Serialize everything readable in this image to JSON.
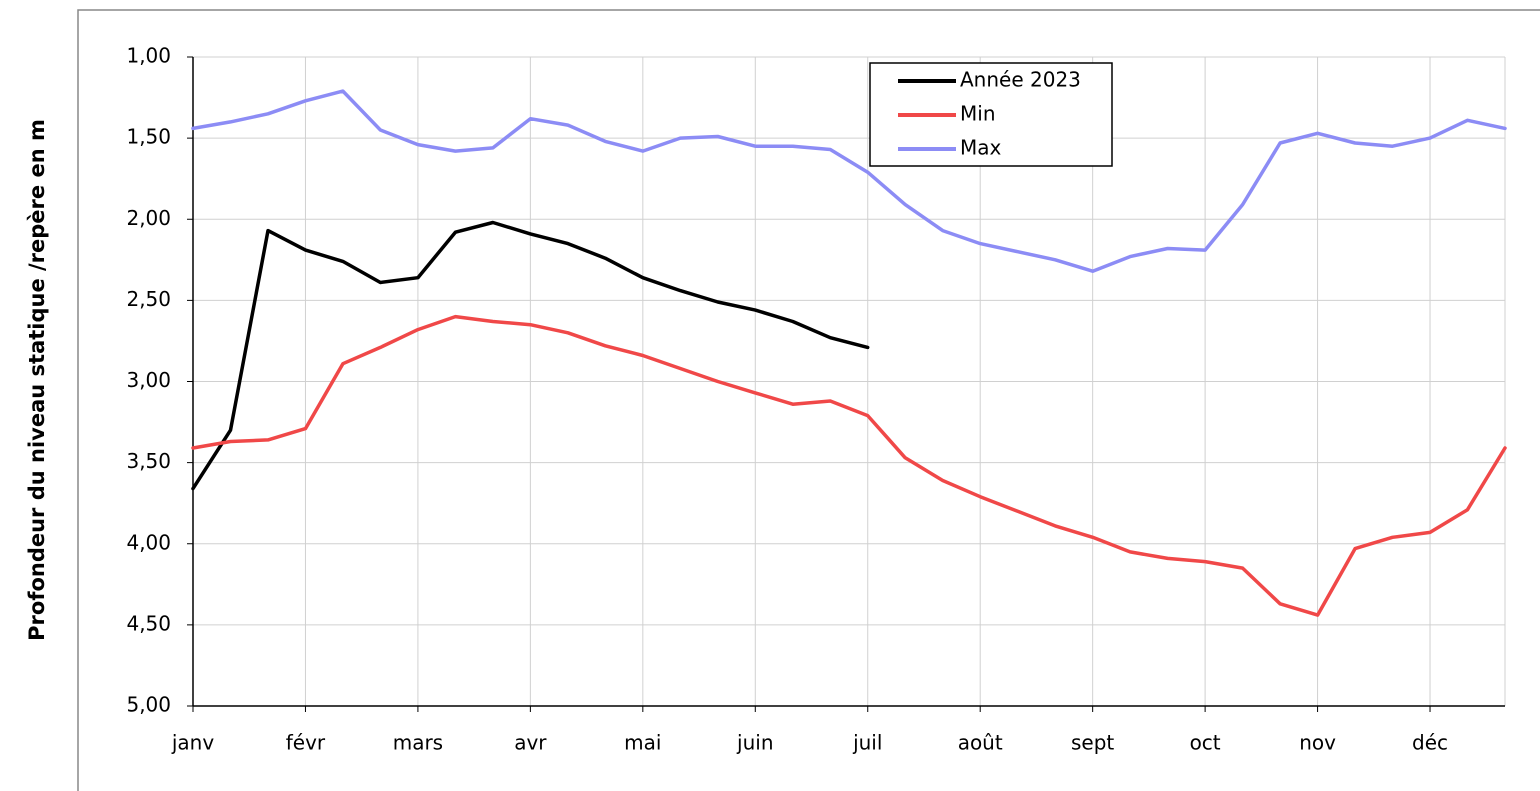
{
  "chart_data": {
    "type": "line",
    "ylabel": "Profondeur du niveau statique /repère en m",
    "categories": [
      "janv",
      null,
      null,
      "févr",
      null,
      null,
      "mars",
      null,
      null,
      "avr",
      null,
      null,
      "mai",
      null,
      null,
      "juin",
      null,
      null,
      "juil",
      null,
      null,
      "août",
      null,
      null,
      "sept",
      null,
      null,
      "oct",
      null,
      null,
      "nov",
      null,
      null,
      "déc",
      null,
      null
    ],
    "series": [
      {
        "name": "Année 2023",
        "color": "#000000",
        "values": [
          3.66,
          3.3,
          2.07,
          2.19,
          2.26,
          2.39,
          2.36,
          2.08,
          2.02,
          2.09,
          2.15,
          2.24,
          2.36,
          2.44,
          2.51,
          2.56,
          2.63,
          2.73,
          2.79,
          null,
          null,
          null,
          null,
          null,
          null,
          null,
          null,
          null,
          null,
          null,
          null,
          null,
          null,
          null,
          null,
          null
        ]
      },
      {
        "name": "Min",
        "color": "#f04848",
        "values": [
          3.41,
          3.37,
          3.36,
          3.29,
          2.89,
          2.79,
          2.68,
          2.6,
          2.63,
          2.65,
          2.7,
          2.78,
          2.84,
          2.92,
          3.0,
          3.07,
          3.14,
          3.12,
          3.21,
          3.47,
          3.61,
          3.71,
          3.8,
          3.89,
          3.96,
          4.05,
          4.09,
          4.11,
          4.15,
          4.37,
          4.44,
          4.03,
          3.96,
          3.93,
          3.79,
          3.41
        ]
      },
      {
        "name": "Max",
        "color": "#8c8cf5",
        "values": [
          1.44,
          1.4,
          1.35,
          1.27,
          1.21,
          1.45,
          1.54,
          1.58,
          1.56,
          1.38,
          1.42,
          1.52,
          1.58,
          1.5,
          1.49,
          1.55,
          1.55,
          1.57,
          1.71,
          1.91,
          2.07,
          2.15,
          2.2,
          2.25,
          2.32,
          2.23,
          2.18,
          2.19,
          1.91,
          1.53,
          1.47,
          1.53,
          1.55,
          1.5,
          1.39,
          1.44
        ]
      }
    ],
    "ylim": [
      1,
      5
    ],
    "invert_y": true,
    "yticks": [
      {
        "value": 1,
        "label": "1,00"
      },
      {
        "value": 1.5,
        "label": "1,50"
      },
      {
        "value": 2,
        "label": "2,00"
      },
      {
        "value": 2.5,
        "label": "2,50"
      },
      {
        "value": 3,
        "label": "3,00"
      },
      {
        "value": 3.5,
        "label": "3,50"
      },
      {
        "value": 4,
        "label": "4,00"
      },
      {
        "value": 4.5,
        "label": "4,50"
      },
      {
        "value": 5,
        "label": "5,00"
      }
    ],
    "grid": true
  }
}
